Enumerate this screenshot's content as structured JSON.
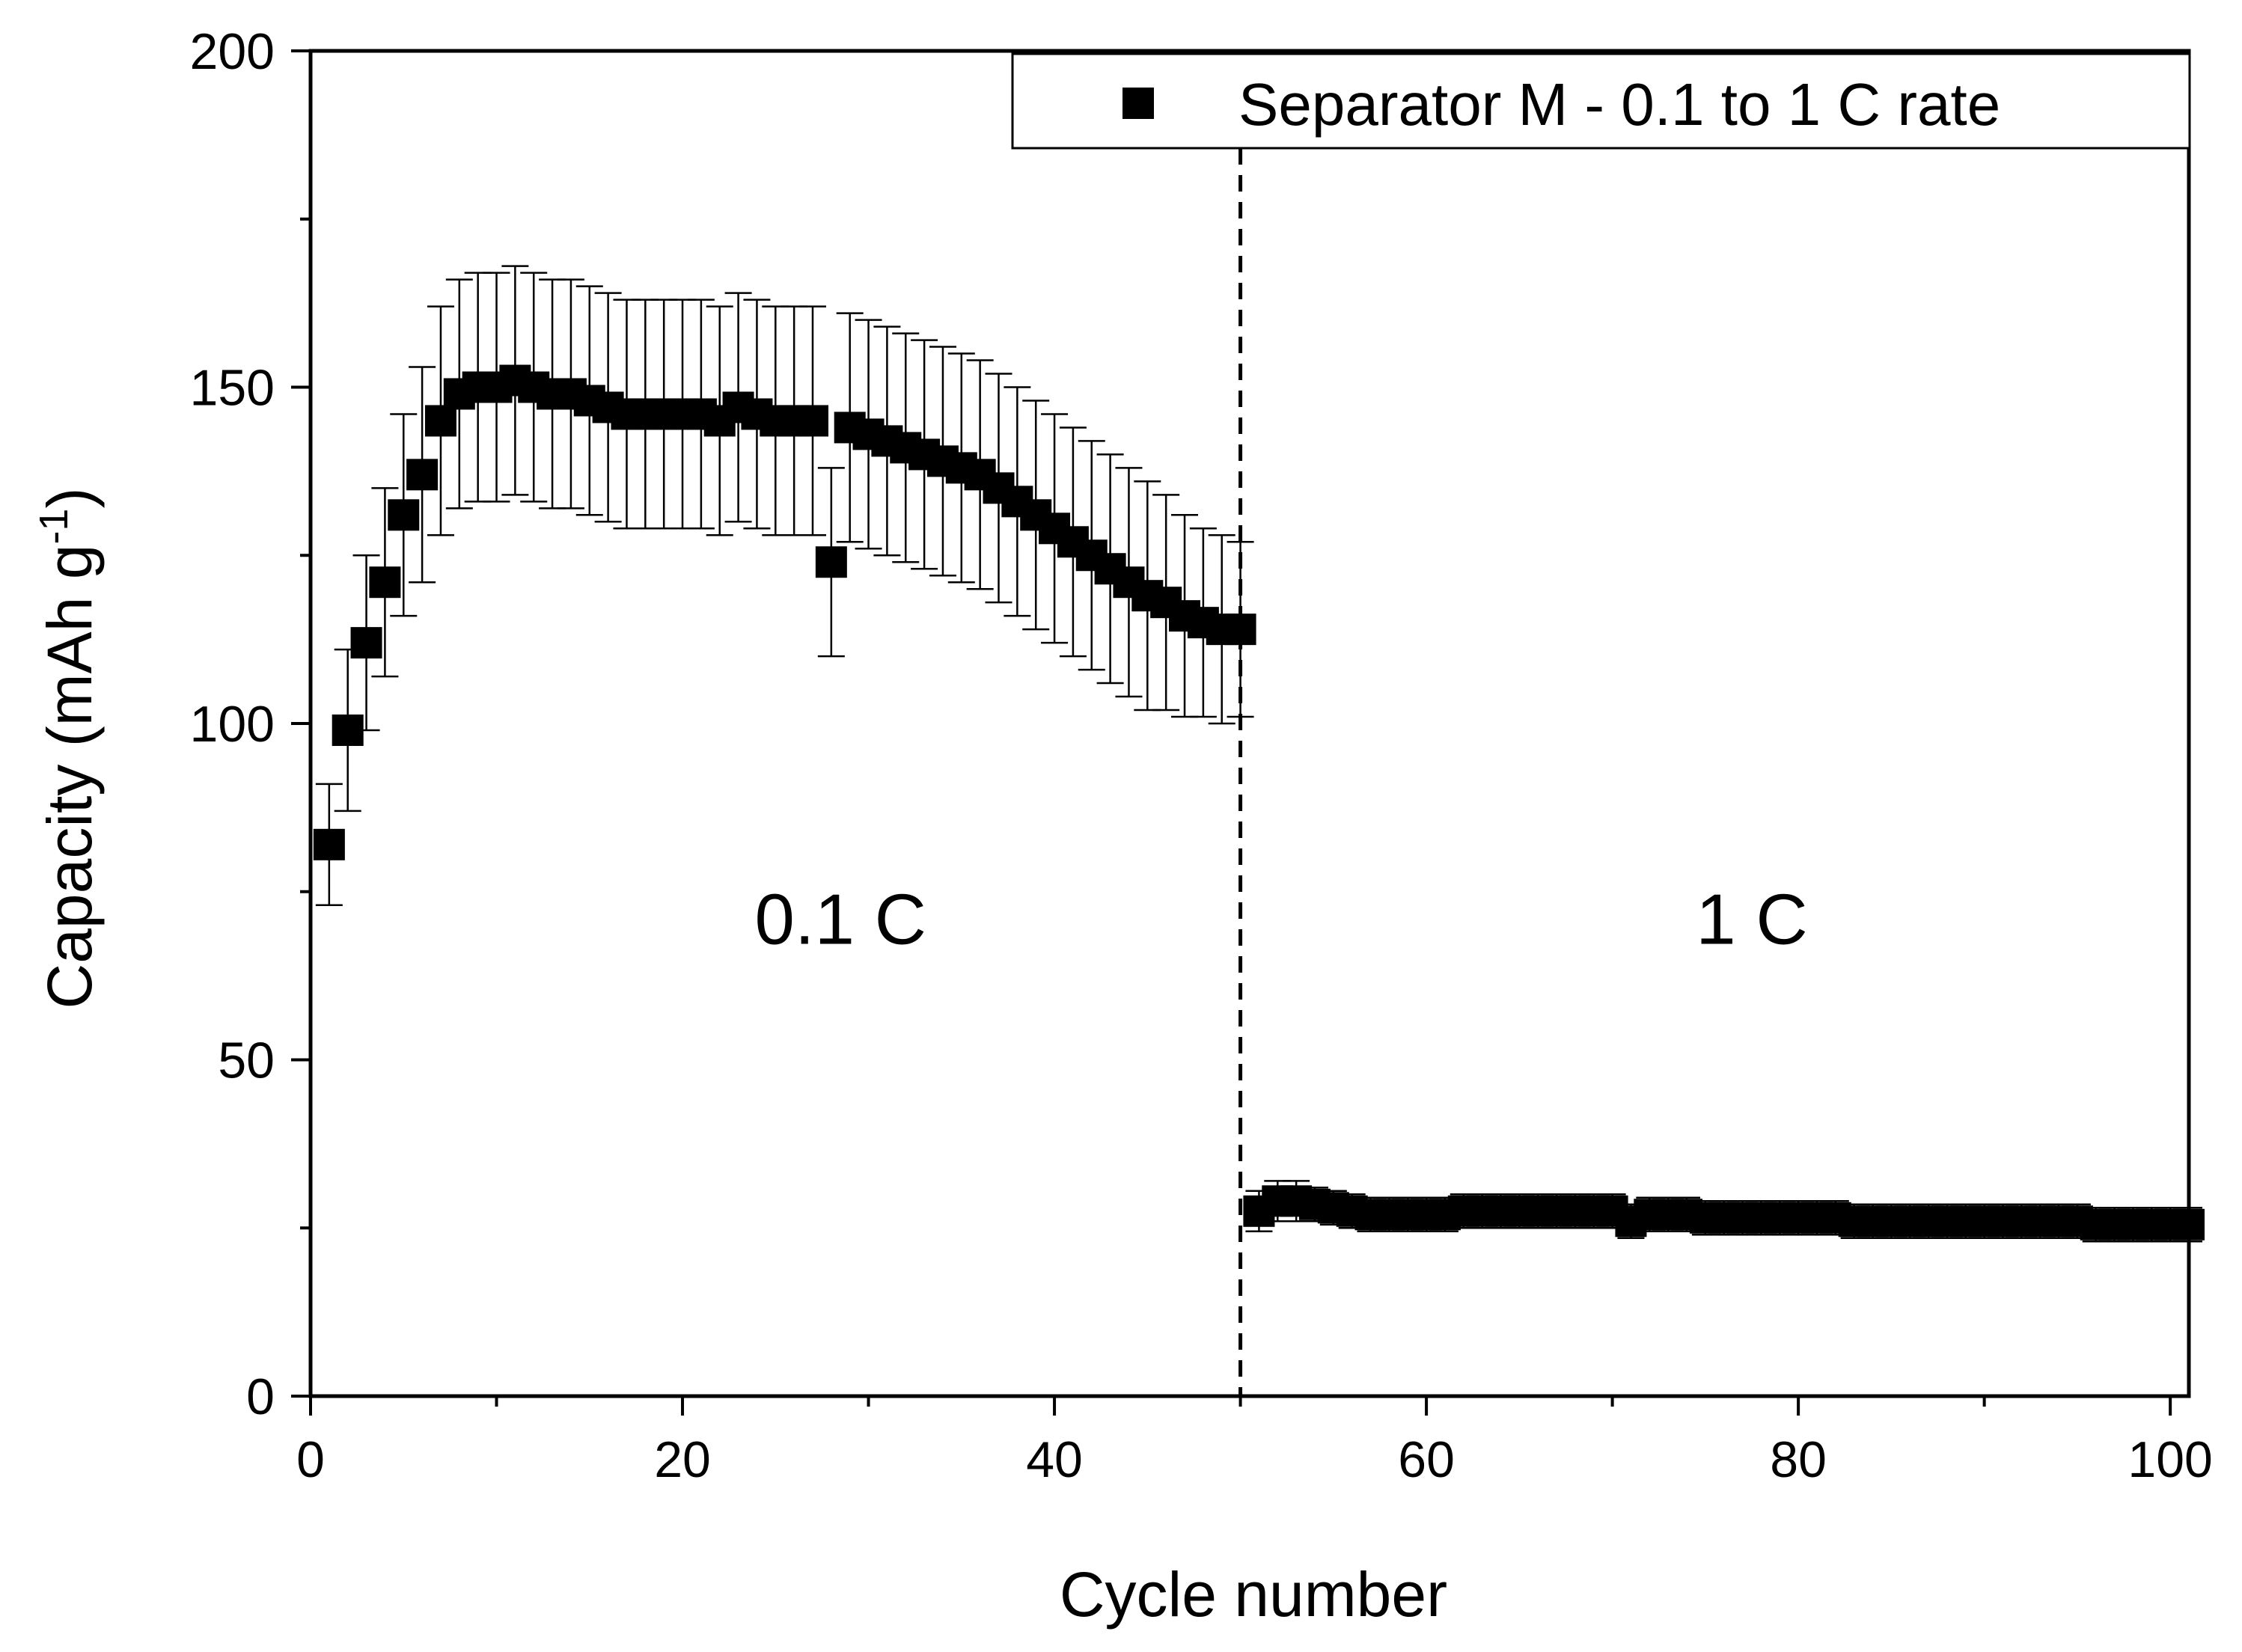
{
  "chart_data": {
    "type": "scatter",
    "title": "",
    "xlabel": "Cycle number",
    "ylabel_main": "Capacity (mAh g",
    "ylabel_sup": "-1",
    "ylabel_close": ")",
    "xlim": [
      0,
      101
    ],
    "ylim": [
      0,
      200
    ],
    "x_ticks": [
      0,
      20,
      40,
      60,
      80,
      100
    ],
    "x_tick_labels": [
      "0",
      "20",
      "40",
      "60",
      "80",
      "100"
    ],
    "x_minor_ticks": [
      10,
      30,
      50,
      70,
      90
    ],
    "y_ticks": [
      0,
      50,
      100,
      150,
      200
    ],
    "y_tick_labels": [
      "0",
      "50",
      "100",
      "150",
      "200"
    ],
    "y_minor_ticks": [
      25,
      75,
      125,
      175
    ],
    "grid": false,
    "legend_position": "top-right",
    "divider_x": 50,
    "annotations": [
      {
        "text": "0.1 C",
        "x": 28.5,
        "y": 71
      },
      {
        "text": "1 C",
        "x": 77.5,
        "y": 71
      }
    ],
    "series": [
      {
        "name": "Separator M - 0.1 to 1 C rate",
        "marker": "square",
        "color": "#000000",
        "x": [
          1,
          2,
          3,
          4,
          5,
          6,
          7,
          8,
          9,
          10,
          11,
          12,
          13,
          14,
          15,
          16,
          17,
          18,
          19,
          20,
          21,
          22,
          23,
          24,
          25,
          26,
          27,
          28,
          29,
          30,
          31,
          32,
          33,
          34,
          35,
          36,
          37,
          38,
          39,
          40,
          41,
          42,
          43,
          44,
          45,
          46,
          47,
          48,
          49,
          50,
          51,
          52,
          53,
          54,
          55,
          56,
          57,
          58,
          59,
          60,
          61,
          62,
          63,
          64,
          65,
          66,
          67,
          68,
          69,
          70,
          71,
          72,
          73,
          74,
          75,
          76,
          77,
          78,
          79,
          80,
          81,
          82,
          83,
          84,
          85,
          86,
          87,
          88,
          89,
          90,
          91,
          92,
          93,
          94,
          95,
          96,
          97,
          98,
          99,
          100,
          101
        ],
        "y": [
          82,
          99,
          112,
          121,
          131,
          137,
          145,
          149,
          150,
          150,
          151,
          150,
          149,
          149,
          148,
          147,
          146,
          146,
          146,
          146,
          146,
          145,
          147,
          146,
          145,
          145,
          145,
          124,
          144,
          143,
          142,
          141,
          140,
          139,
          138,
          137,
          135,
          133,
          131,
          129,
          127,
          125,
          123,
          121,
          119,
          118,
          116,
          115,
          114,
          114,
          27.5,
          29,
          29,
          28.5,
          28,
          27.5,
          27,
          27,
          27,
          27,
          27,
          27.5,
          27.5,
          27.5,
          27.5,
          27.5,
          27.5,
          27.5,
          27.5,
          27.5,
          26,
          27,
          27,
          27,
          26.5,
          26.5,
          26.5,
          26.5,
          26.5,
          26.5,
          26.5,
          26.5,
          26,
          26,
          26,
          26,
          26,
          26,
          26,
          26,
          26,
          26,
          26,
          26,
          26,
          25.5,
          25.5,
          25.5,
          25.5,
          25.5,
          25.5
        ],
        "err": [
          9,
          12,
          13,
          14,
          15,
          16,
          17,
          17,
          17,
          17,
          17,
          17,
          17,
          17,
          17,
          17,
          17,
          17,
          17,
          17,
          17,
          17,
          17,
          17,
          17,
          17,
          17,
          14,
          17,
          17,
          17,
          17,
          17,
          17,
          17,
          17,
          17,
          17,
          17,
          17,
          17,
          17,
          17,
          17,
          17,
          16,
          15,
          14,
          14,
          13,
          3,
          3,
          3,
          2.5,
          2.5,
          2.5,
          2.5,
          2.5,
          2.5,
          2.5,
          2.5,
          2.5,
          2.5,
          2.5,
          2.5,
          2.5,
          2.5,
          2.5,
          2.5,
          2.5,
          2.5,
          2.5,
          2.5,
          2.5,
          2.5,
          2.5,
          2.5,
          2.5,
          2.5,
          2.5,
          2.5,
          2.5,
          2.5,
          2.5,
          2.5,
          2.5,
          2.5,
          2.5,
          2.5,
          2.5,
          2.5,
          2.5,
          2.5,
          2.5,
          2.5,
          2.5,
          2.5,
          2.5,
          2.5,
          2.5,
          2.5
        ]
      }
    ]
  }
}
